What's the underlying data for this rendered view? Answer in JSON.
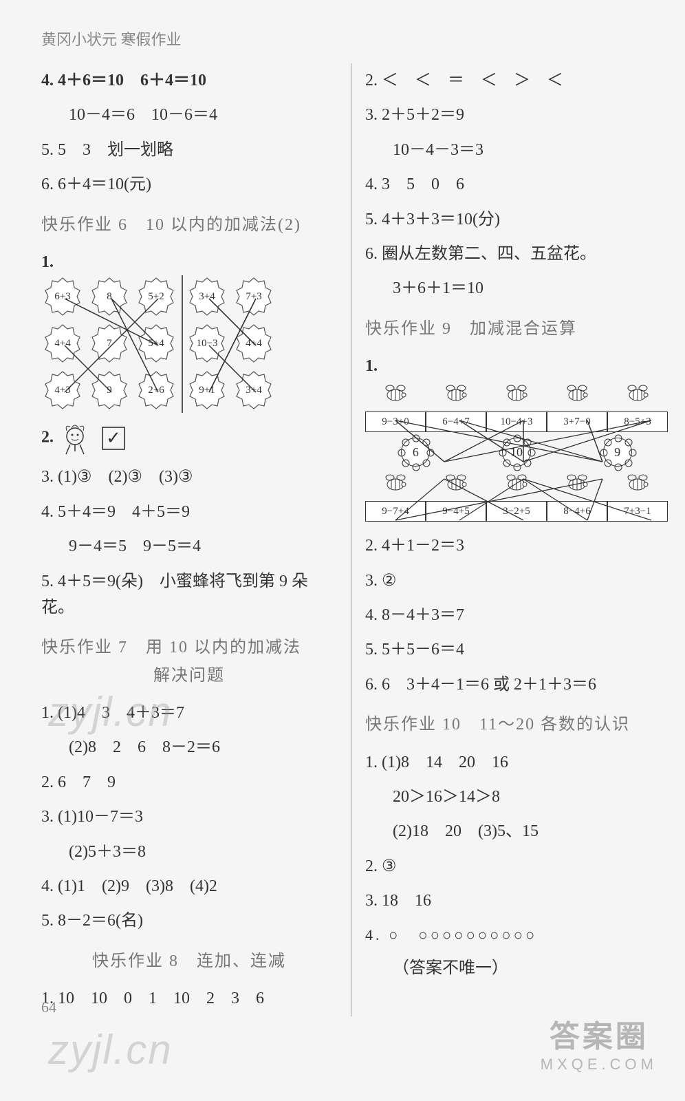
{
  "header": "黄冈小状元 寒假作业",
  "page_number": "64",
  "watermarks": {
    "wm1": "zyjl.cn",
    "wm2": "zyjl.cn",
    "stamp_top": "答案圈",
    "stamp_bottom": "MXQE.COM"
  },
  "left": {
    "l4": "4. 4＋6＝10　6＋4＝10",
    "l4b": "10－4＝6　10－6＝4",
    "l5": "5. 5　3　划一划略",
    "l6": "6. 6＋4＝10(元)",
    "sec6": "快乐作业 6　10 以内的加减法(2)",
    "q1_label": "1.",
    "leaves_left": [
      [
        "6+3",
        "8",
        "5+2"
      ],
      [
        "4+4",
        "7",
        "5+4"
      ],
      [
        "4+3",
        "9",
        "2+6"
      ]
    ],
    "leaves_right": [
      [
        "3+4",
        "7+3"
      ],
      [
        "10−3",
        "4+4"
      ],
      [
        "9+1",
        "3+4"
      ]
    ],
    "leaf_lines_left": [
      [
        0,
        0,
        1,
        2
      ],
      [
        0,
        2,
        1,
        1
      ],
      [
        1,
        0,
        2,
        1
      ],
      [
        1,
        2,
        0,
        1
      ],
      [
        2,
        0,
        1,
        1
      ],
      [
        2,
        2,
        0,
        1
      ]
    ],
    "leaf_lines_right": [
      [
        0,
        0,
        1,
        1
      ],
      [
        0,
        1,
        2,
        0
      ],
      [
        1,
        0,
        2,
        1
      ],
      [
        1,
        1,
        0,
        0
      ],
      [
        2,
        0,
        0,
        1
      ]
    ],
    "q2_label": "2.",
    "q2_check": "✓",
    "q3": "3. (1)③　(2)③　(3)③",
    "q4": "4. 5＋4＝9　4＋5＝9",
    "q4b": "9－4＝5　9－5＝4",
    "q5": "5. 4＋5＝9(朵)　小蜜蜂将飞到第 9 朵花。",
    "sec7a": "快乐作业 7　用 10 以内的加减法",
    "sec7b": "解决问题",
    "s7_1a": "1. (1)4　3　4＋3＝7",
    "s7_1b": "(2)8　2　6　8－2＝6",
    "s7_2": "2. 6　7　9",
    "s7_3a": "3. (1)10－7＝3",
    "s7_3b": "(2)5＋3＝8",
    "s7_4": "4. (1)1　(2)9　(3)8　(4)2",
    "s7_5": "5. 8－2＝6(名)",
    "sec8": "快乐作业 8　连加、连减",
    "s8_1": "1. 10　10　0　1　10　2　3　6"
  },
  "right": {
    "r2": "2. ＜　＜　＝　＜　＞　＜",
    "r3": "3. 2＋5＋2＝9",
    "r3b": "10－4－3＝3",
    "r4": "4. 3　5　0　6",
    "r5": "5. 4＋3＋3＝10(分)",
    "r6": "6. 圈从左数第二、四、五盆花。",
    "r6b": "3＋6＋1＝10",
    "sec9": "快乐作业 9　加减混合运算",
    "q1_label": "1.",
    "bees_top": [
      "9−3+0",
      "6−4+7",
      "10−4+3",
      "3+7−0",
      "8−5+3"
    ],
    "flowers": [
      "6",
      "10",
      "9"
    ],
    "bees_bot": [
      "9−7+4",
      "9−4+5",
      "3−2+5",
      "8−4+6",
      "7+3−1"
    ],
    "bee_lines": [
      [
        0,
        0
      ],
      [
        1,
        1
      ],
      [
        2,
        1
      ],
      [
        3,
        2
      ],
      [
        4,
        0
      ],
      [
        0,
        2
      ],
      [
        0,
        0
      ],
      [
        1,
        2
      ],
      [
        1,
        1
      ],
      [
        2,
        0
      ],
      [
        2,
        1
      ],
      [
        3,
        2
      ],
      [
        4,
        1
      ]
    ],
    "flower_to_bot": [
      [
        0,
        0
      ],
      [
        0,
        2
      ],
      [
        1,
        1
      ],
      [
        1,
        3
      ],
      [
        1,
        4
      ],
      [
        2,
        0
      ],
      [
        2,
        3
      ]
    ],
    "s9_2": "2. 4＋1－2＝3",
    "s9_3": "3. ②",
    "s9_4": "4. 8－4＋3＝7",
    "s9_5": "5. 5＋5－6＝4",
    "s9_6": "6. 6　3＋4－1＝6 或 2＋1＋3＝6",
    "sec10": "快乐作业 10　11～20 各数的认识",
    "s10_1a": "1. (1)8　14　20　16",
    "s10_1b": "20＞16＞14＞8",
    "s10_1c": "(2)18　20　(3)5、15",
    "s10_2": "2. ③",
    "s10_3": "3. 18　16",
    "s10_4a": "4. ○　○○○○○○○○○○",
    "s10_4b": "（答案不唯一）"
  }
}
